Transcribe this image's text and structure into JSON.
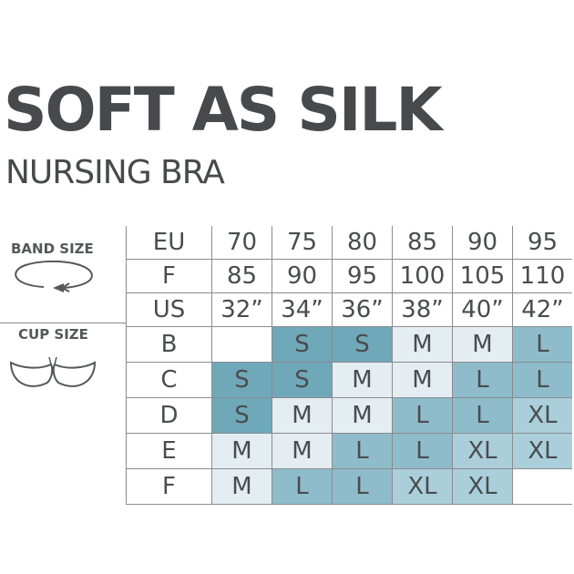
{
  "title": "SOFT AS SILK",
  "subtitle": "NURSING BRA",
  "band_size_label": "BAND SIZE",
  "cup_size_label": "CUP SIZE",
  "icons": {
    "band": "band-circle-arrow-icon",
    "cup": "bra-cups-icon"
  },
  "size_colors": {
    "S": "#6fa8b9",
    "M": "#e4edf1",
    "L": "#8fbccb",
    "XL": "#aacfdb"
  },
  "band_rows": [
    {
      "label": "EU",
      "values": [
        "70",
        "75",
        "80",
        "85",
        "90",
        "95"
      ]
    },
    {
      "label": "F",
      "values": [
        "85",
        "90",
        "95",
        "100",
        "105",
        "110"
      ]
    },
    {
      "label": "US",
      "values": [
        "32”",
        "34”",
        "36”",
        "38”",
        "40”",
        "42”"
      ]
    }
  ],
  "cup_rows": [
    {
      "label": "B",
      "values": [
        "",
        "S",
        "S",
        "M",
        "M",
        "L"
      ]
    },
    {
      "label": "C",
      "values": [
        "S",
        "S",
        "M",
        "M",
        "L",
        "L"
      ]
    },
    {
      "label": "D",
      "values": [
        "S",
        "M",
        "M",
        "L",
        "L",
        "XL"
      ]
    },
    {
      "label": "E",
      "values": [
        "M",
        "M",
        "L",
        "L",
        "XL",
        "XL"
      ]
    },
    {
      "label": "F",
      "values": [
        "M",
        "L",
        "L",
        "XL",
        "XL",
        ""
      ]
    }
  ]
}
